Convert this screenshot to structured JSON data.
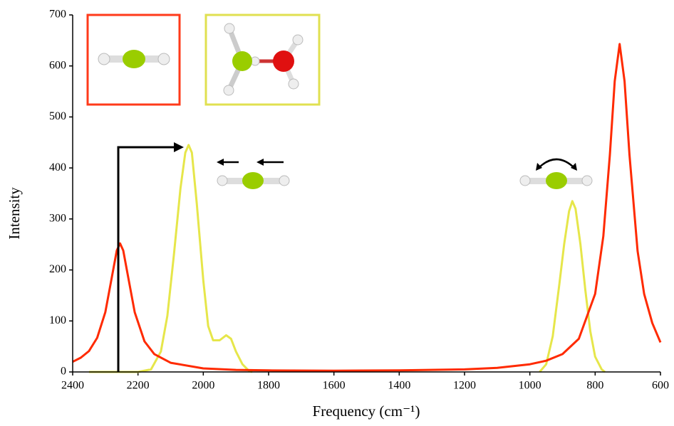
{
  "chart_data": {
    "type": "line",
    "xlabel": "Frequency (cm⁻¹)",
    "ylabel": "Intensity",
    "xlim": [
      2400,
      600
    ],
    "xticks": [
      2400,
      2200,
      2000,
      1800,
      1600,
      1400,
      1200,
      1000,
      800,
      600
    ],
    "ylim": [
      0,
      700
    ],
    "yticks": [
      0,
      100,
      200,
      300,
      400,
      500,
      600,
      700
    ],
    "series": [
      {
        "color": "#ff2a00",
        "x": [
          2400,
          2375,
          2350,
          2325,
          2300,
          2280,
          2265,
          2255,
          2245,
          2230,
          2210,
          2180,
          2150,
          2100,
          2000,
          1900,
          1800,
          1600,
          1400,
          1200,
          1100,
          1000,
          950,
          900,
          850,
          800,
          775,
          755,
          740,
          725,
          710,
          695,
          670,
          650,
          625,
          600
        ],
        "values": [
          20,
          28,
          41,
          67,
          117,
          186,
          238,
          252,
          238,
          186,
          117,
          60,
          35,
          18,
          7,
          4,
          3,
          2.5,
          3,
          5,
          8,
          15,
          22,
          35,
          65,
          153,
          266,
          426,
          570,
          643,
          570,
          426,
          237,
          153,
          96,
          58
        ]
      },
      {
        "color": "#e6e64a",
        "x": [
          2350,
          2200,
          2160,
          2130,
          2110,
          2090,
          2070,
          2055,
          2045,
          2035,
          2020,
          2000,
          1985,
          1970,
          1950,
          1930,
          1915,
          1900,
          1880,
          1860,
          1850,
          1400,
          970,
          950,
          930,
          910,
          895,
          880,
          870,
          860,
          845,
          830,
          815,
          800,
          780,
          770
        ],
        "values": [
          0,
          0,
          5,
          40,
          110,
          230,
          360,
          430,
          445,
          430,
          330,
          180,
          90,
          62,
          62,
          72,
          65,
          40,
          15,
          2,
          0,
          null,
          0,
          15,
          70,
          170,
          250,
          315,
          335,
          320,
          250,
          160,
          80,
          30,
          5,
          0
        ]
      }
    ]
  }
}
